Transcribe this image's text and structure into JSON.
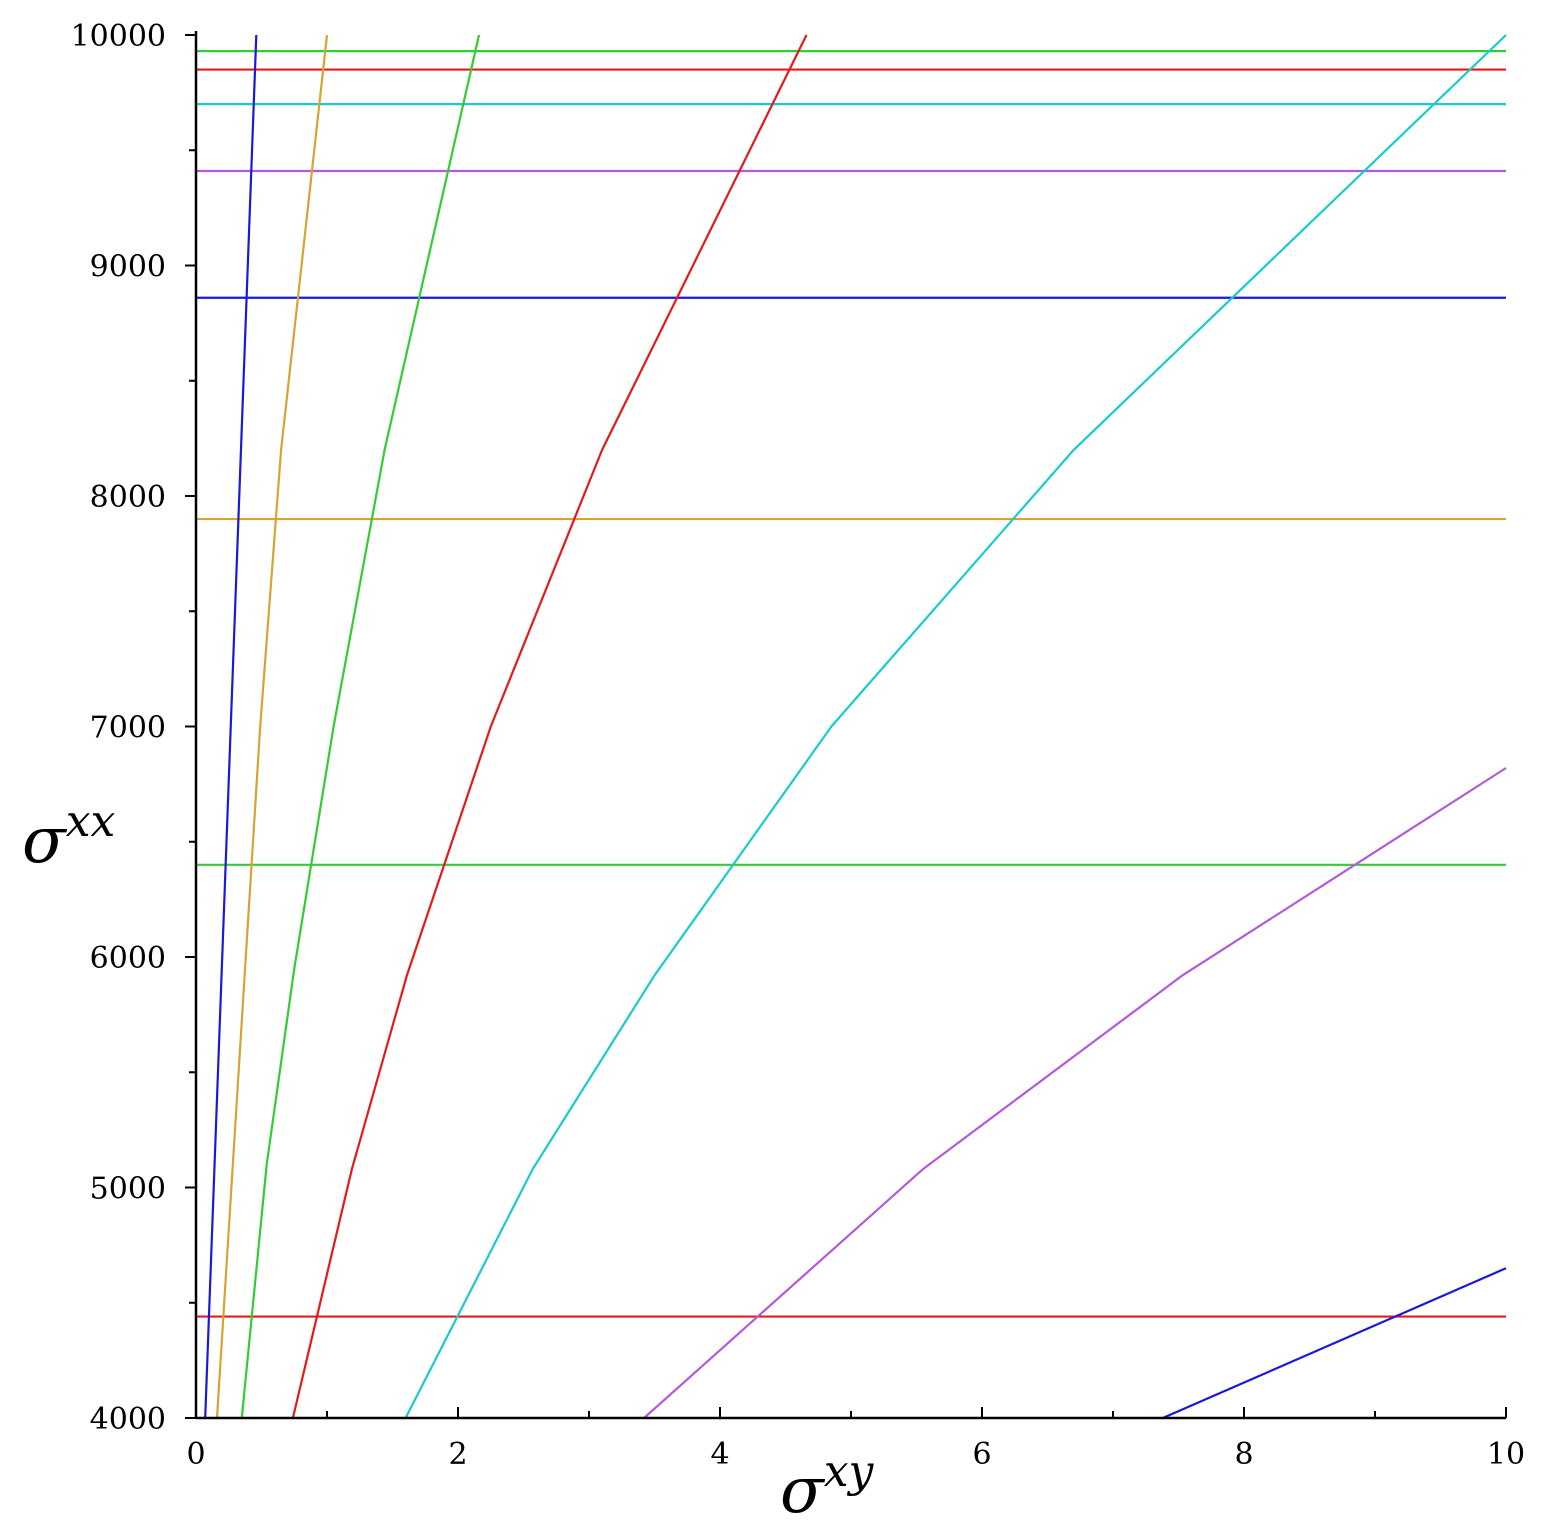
{
  "chart_data": {
    "type": "line",
    "title": "",
    "xlabel": {
      "base": "σ",
      "sup": "xy"
    },
    "ylabel": {
      "base": "σ",
      "sup": "xx"
    },
    "xlim": [
      0,
      10
    ],
    "ylim": [
      4000,
      10000
    ],
    "x_ticks": [
      0,
      2,
      4,
      6,
      8,
      10
    ],
    "x_tick_labels": [
      "0",
      "2",
      "4",
      "6",
      "8",
      "10"
    ],
    "y_ticks": [
      4000,
      5000,
      6000,
      7000,
      8000,
      9000,
      10000
    ],
    "y_tick_labels": [
      "4000",
      "5000",
      "6000",
      "7000",
      "8000",
      "9000",
      "10000"
    ],
    "grid": false,
    "horizontal_lines": [
      {
        "y": 9930,
        "color": "#33cc33"
      },
      {
        "y": 9850,
        "color": "#e6191a"
      },
      {
        "y": 9700,
        "color": "#19cccc"
      },
      {
        "y": 9410,
        "color": "#b359d9"
      },
      {
        "y": 8860,
        "color": "#1a19d9"
      },
      {
        "y": 7900,
        "color": "#d9a233"
      },
      {
        "y": 6400,
        "color": "#33cc33"
      },
      {
        "y": 4440,
        "color": "#e6191a"
      }
    ],
    "series": [
      {
        "color": "#1a19d9",
        "points": [
          [
            0.07,
            4000
          ],
          [
            0.46,
            10000
          ]
        ]
      },
      {
        "color": "#d9a233",
        "points": [
          [
            0.16,
            4000
          ],
          [
            0.49,
            7000
          ],
          [
            0.65,
            8200
          ],
          [
            1.0,
            10000
          ]
        ]
      },
      {
        "color": "#33cc33",
        "points": [
          [
            0.35,
            4000
          ],
          [
            0.54,
            5100
          ],
          [
            0.75,
            5950
          ],
          [
            1.05,
            7000
          ],
          [
            1.44,
            8200
          ],
          [
            2.16,
            10000
          ]
        ]
      },
      {
        "color": "#e6191a",
        "points": [
          [
            0.74,
            4000
          ],
          [
            1.19,
            5080
          ],
          [
            1.61,
            5920
          ],
          [
            2.25,
            7000
          ],
          [
            3.1,
            8200
          ],
          [
            4.66,
            10000
          ]
        ]
      },
      {
        "color": "#19cccc",
        "points": [
          [
            1.6,
            4000
          ],
          [
            2.57,
            5080
          ],
          [
            3.5,
            5920
          ],
          [
            4.85,
            7000
          ],
          [
            6.7,
            8200
          ],
          [
            10.0,
            10000
          ]
        ]
      },
      {
        "color": "#b359d9",
        "points": [
          [
            3.42,
            4000
          ],
          [
            5.55,
            5080
          ],
          [
            7.53,
            5920
          ],
          [
            10.0,
            6820
          ]
        ]
      },
      {
        "color": "#1a19d9",
        "points": [
          [
            7.38,
            4000
          ],
          [
            10.0,
            4650
          ]
        ]
      }
    ]
  }
}
